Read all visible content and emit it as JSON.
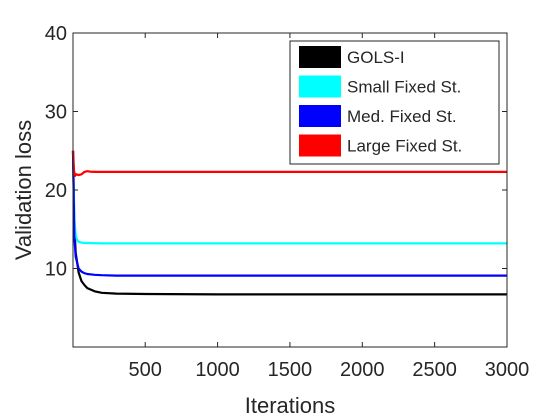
{
  "chart_data": {
    "type": "line",
    "title": "",
    "xlabel": "Iterations",
    "ylabel": "Validation loss",
    "xlim": [
      1,
      3000
    ],
    "ylim": [
      0,
      40
    ],
    "xticks": [
      500,
      1000,
      1500,
      2000,
      2500,
      3000
    ],
    "yticks": [
      10,
      20,
      30,
      40
    ],
    "grid": false,
    "legend_position": "top-right",
    "series": [
      {
        "name": "GOLS-I",
        "color": "#000000",
        "x": [
          1,
          10,
          20,
          40,
          60,
          80,
          100,
          150,
          200,
          300,
          500,
          1000,
          1500,
          2000,
          2500,
          3000
        ],
        "y": [
          25,
          15.5,
          12,
          9.5,
          8.4,
          7.9,
          7.5,
          7.1,
          6.9,
          6.8,
          6.75,
          6.7,
          6.7,
          6.7,
          6.7,
          6.7
        ]
      },
      {
        "name": "Small Fixed St.",
        "color": "#00ffff",
        "x": [
          1,
          10,
          20,
          30,
          40,
          60,
          80,
          100,
          200,
          500,
          1000,
          1500,
          2000,
          2500,
          3000
        ],
        "y": [
          25,
          16.5,
          14.2,
          13.6,
          13.4,
          13.3,
          13.25,
          13.25,
          13.2,
          13.2,
          13.2,
          13.2,
          13.2,
          13.2,
          13.2
        ]
      },
      {
        "name": "Med. Fixed St.",
        "color": "#0000ff",
        "x": [
          1,
          10,
          20,
          40,
          60,
          80,
          100,
          150,
          200,
          300,
          500,
          1000,
          1500,
          2000,
          2500,
          3000
        ],
        "y": [
          25,
          14,
          11.5,
          10,
          9.6,
          9.4,
          9.3,
          9.2,
          9.15,
          9.1,
          9.1,
          9.1,
          9.1,
          9.1,
          9.1,
          9.1
        ]
      },
      {
        "name": "Large Fixed St.",
        "color": "#ff0000",
        "x": [
          1,
          8,
          15,
          25,
          40,
          60,
          80,
          100,
          120,
          150,
          200,
          500,
          1000,
          1500,
          2000,
          2500,
          3000
        ],
        "y": [
          25,
          22.5,
          21.8,
          22,
          21.9,
          22,
          22.3,
          22.4,
          22.35,
          22.3,
          22.3,
          22.3,
          22.3,
          22.3,
          22.3,
          22.3,
          22.3
        ]
      }
    ]
  }
}
